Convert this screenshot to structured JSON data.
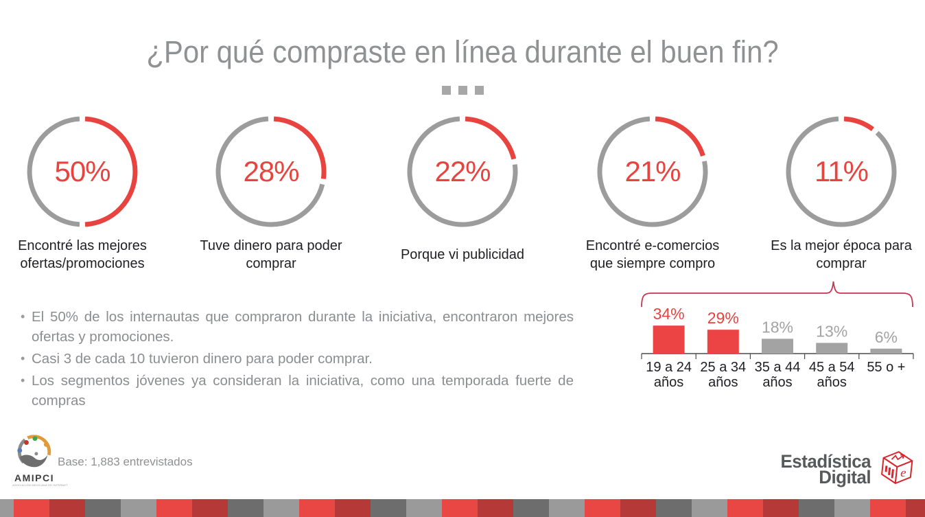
{
  "title": "¿Por qué compraste en línea durante el buen fin?",
  "chart_data": [
    {
      "type": "donut",
      "title": "¿Por qué compraste en línea durante el buen fin?",
      "unit": "%",
      "ring_color": "#9C9C9C",
      "accent_color": "#E8433F",
      "items": [
        {
          "label": "Encontré las mejores ofertas/promociones",
          "value": 50,
          "display": "50%"
        },
        {
          "label": "Tuve dinero para poder comprar",
          "value": 28,
          "display": "28%"
        },
        {
          "label": "Porque vi publicidad",
          "value": 22,
          "display": "22%"
        },
        {
          "label": "Encontré e-comercios que siempre compro",
          "value": 21,
          "display": "21%"
        },
        {
          "label": "Es la mejor época para comprar",
          "value": 11,
          "display": "11%"
        }
      ]
    },
    {
      "type": "bar",
      "title": "Es la mejor época para comprar",
      "categories": [
        "19 a 24 años",
        "25 a 34 años",
        "35 a 44 años",
        "45 a 54 años",
        "55 o +"
      ],
      "category_lines": [
        [
          "19 a 24",
          "años"
        ],
        [
          "25 a 34",
          "años"
        ],
        [
          "35 a 44",
          "años"
        ],
        [
          "45 a 54",
          "años"
        ],
        [
          "55 o +"
        ]
      ],
      "values": [
        34,
        29,
        18,
        13,
        6
      ],
      "value_labels": [
        "34%",
        "29%",
        "18%",
        "13%",
        "6%"
      ],
      "bar_colors": [
        "#EC4445",
        "#EC4445",
        "#A3A3A3",
        "#A3A3A3",
        "#A3A3A3"
      ],
      "label_colors": [
        "#E8433F",
        "#E8433F",
        "#A3A3A3",
        "#A3A3A3",
        "#A3A3A3"
      ],
      "ylim": [
        0,
        40
      ],
      "grid": false,
      "legend": false,
      "axis_color": "#4A4A4A",
      "category_color": "#1E1E24",
      "brace_color": "#C93350"
    }
  ],
  "bullets": [
    "El 50% de los internautas que compraron durante la iniciativa, encontraron mejores ofertas y promociones.",
    "Casi 3 de cada 10 tuvieron dinero para poder comprar.",
    "Los segmentos jóvenes ya consideran la iniciativa, como una temporada fuerte de compras"
  ],
  "footer": {
    "base_label": "Base: 1,883 entrevistados",
    "amipci": {
      "name": "AMIPCI",
      "tagline": "ASOCIACIÓN MEXICANA DE INTERNET"
    },
    "brand": {
      "line1": "Estadística",
      "line2": "Digital"
    }
  },
  "stripe": {
    "lead_width": 20,
    "lead_color": "#9A9A9A",
    "block_width": 52,
    "cycle": [
      "#E84744",
      "#B43937",
      "#6D6D6D",
      "#9A9A9A"
    ]
  }
}
